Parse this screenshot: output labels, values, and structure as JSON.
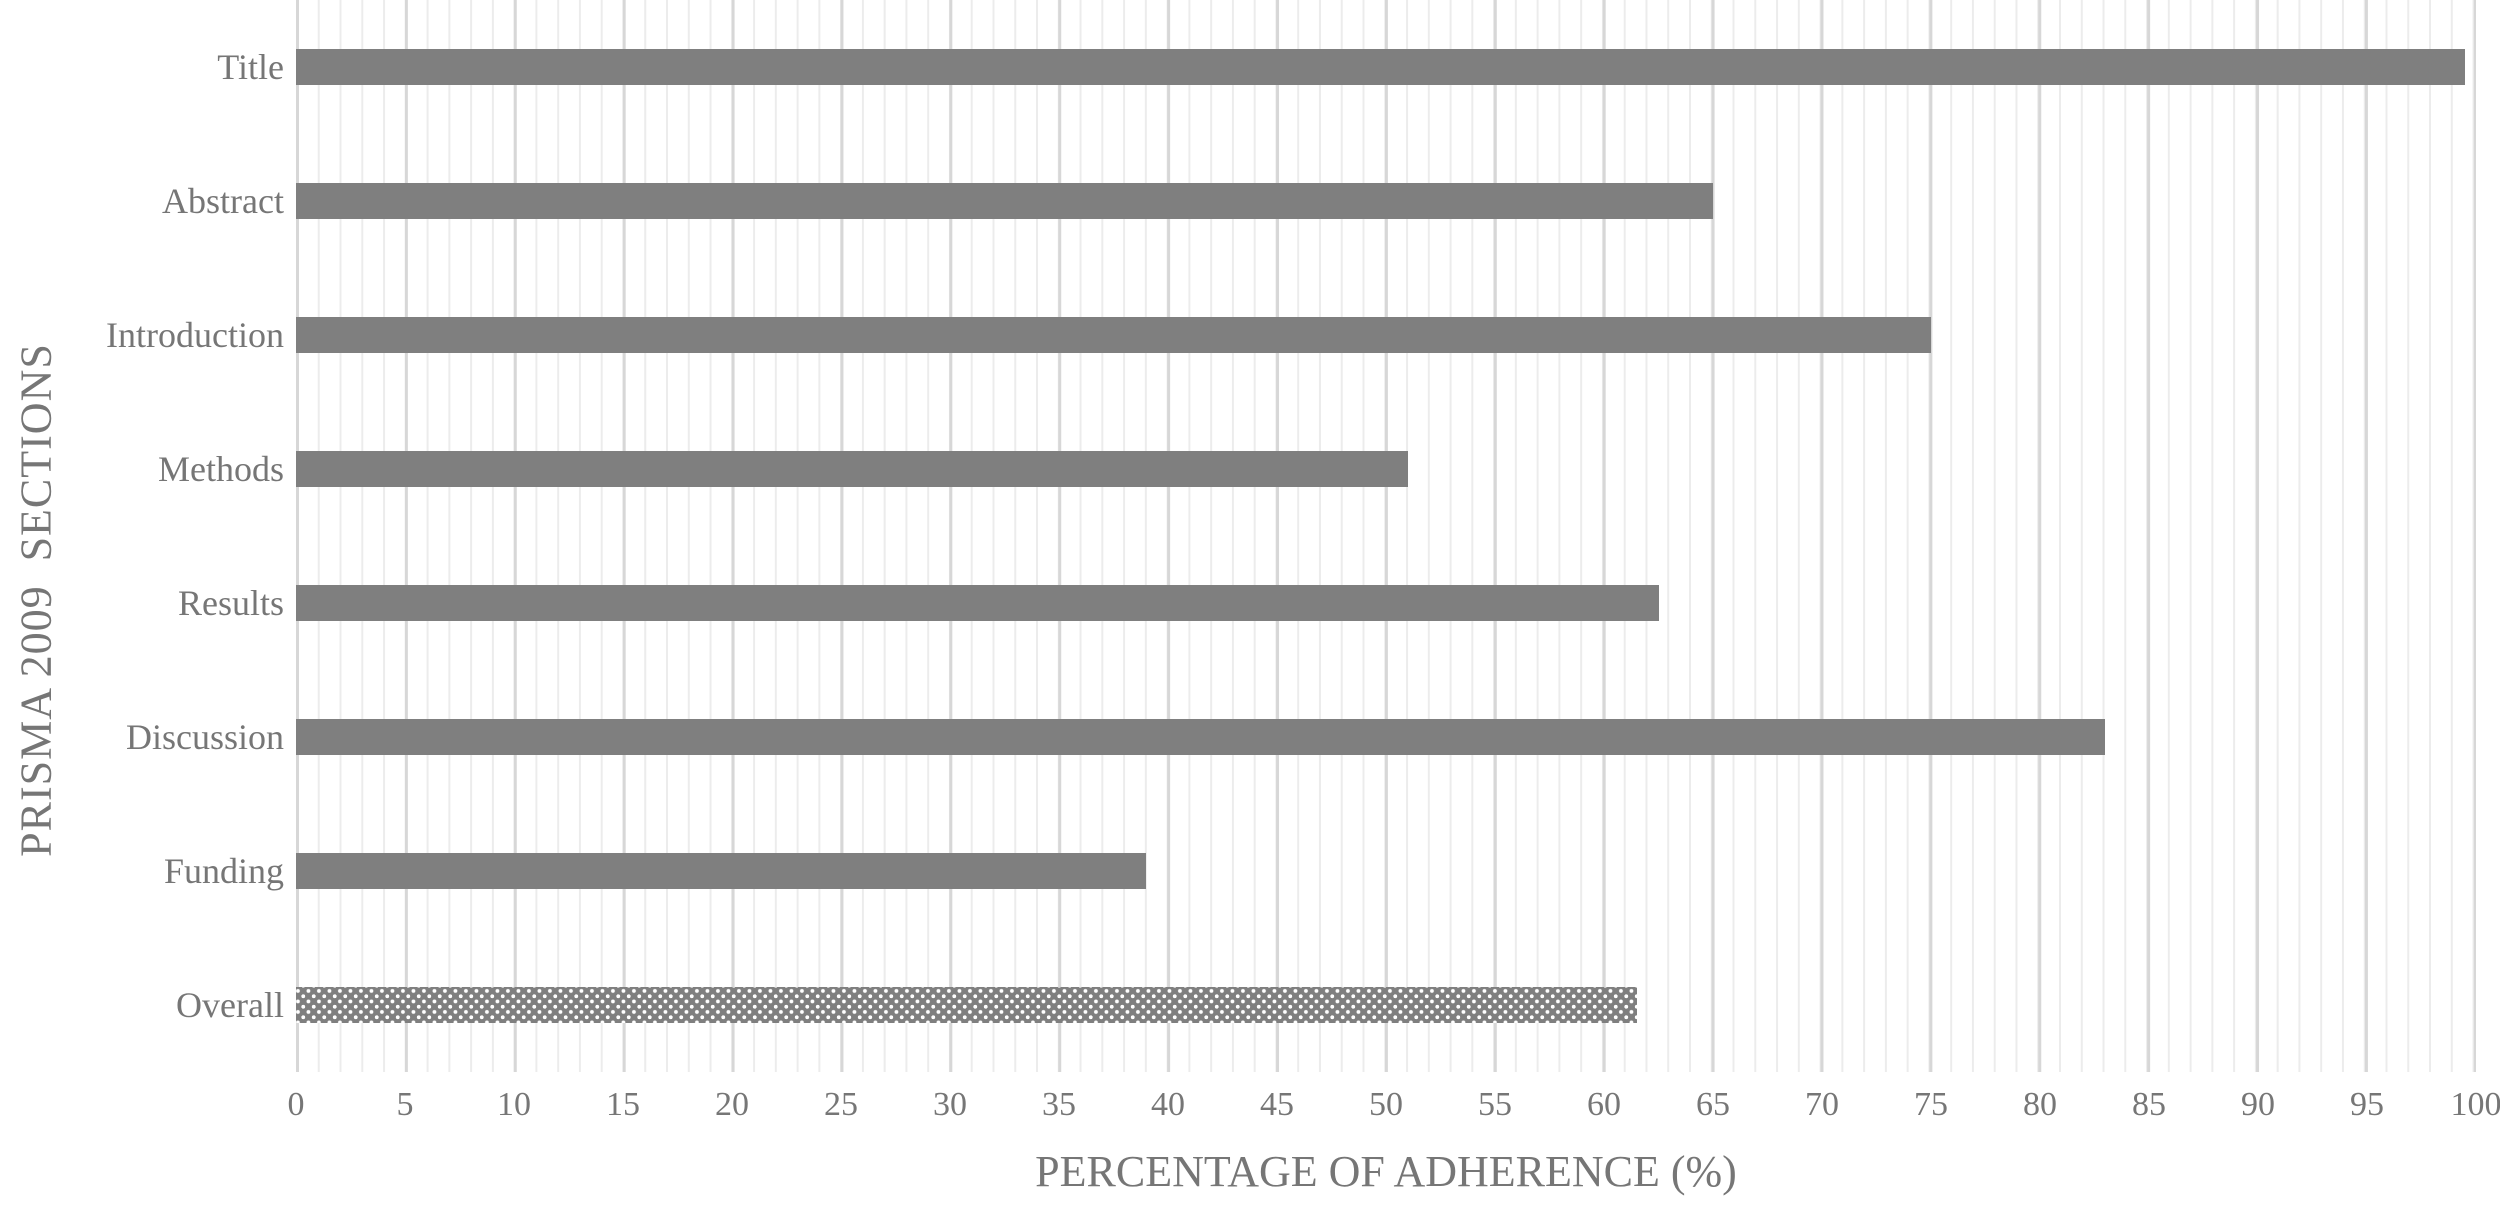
{
  "chart_data": {
    "type": "bar",
    "orientation": "horizontal",
    "title": "",
    "xlabel": "PERCENTAGE OF ADHERENCE (%)",
    "ylabel": "PRISMA 2009  SECTIONS",
    "categories": [
      "Title",
      "Abstract",
      "Introduction",
      "Methods",
      "Results",
      "Discussion",
      "Funding",
      "Overall"
    ],
    "values": [
      99.5,
      65,
      75,
      51,
      62.5,
      83,
      39,
      61.5
    ],
    "patterned_categories": [
      "Overall"
    ],
    "xlim": [
      0,
      100
    ],
    "xticks": [
      0,
      5,
      10,
      15,
      20,
      25,
      30,
      35,
      40,
      45,
      50,
      55,
      60,
      65,
      70,
      75,
      80,
      85,
      90,
      95,
      100
    ],
    "grid": {
      "minor_step": 1,
      "major_step": 5,
      "minor_color": "#ececec",
      "major_color": "#d7d7d7"
    },
    "bar_color": "#7f7f7f",
    "text_color": "#767676",
    "legend": "none",
    "background": "#ffffff"
  }
}
